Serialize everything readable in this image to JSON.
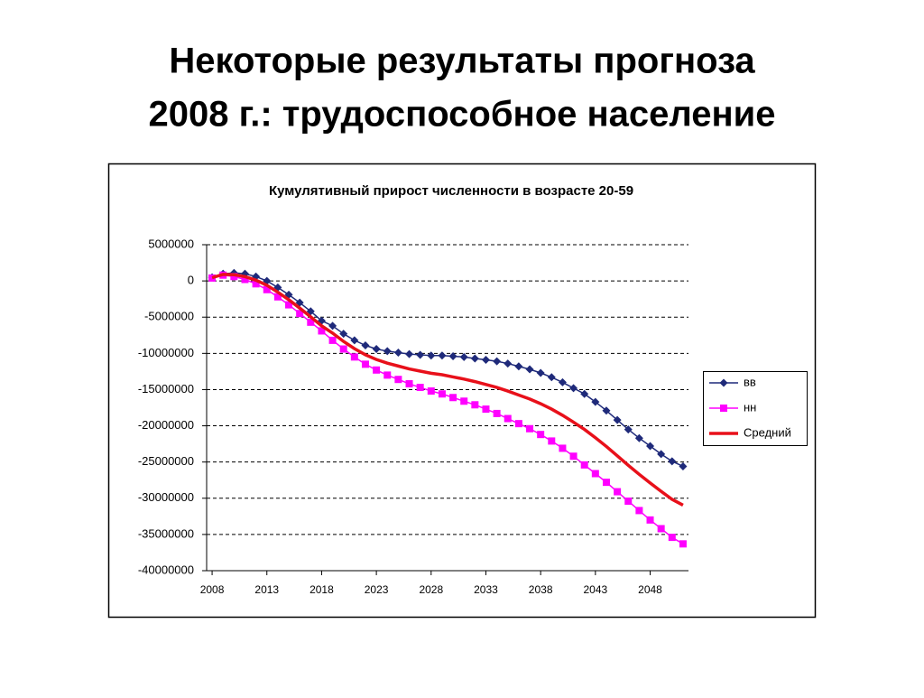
{
  "slide_title": [
    "Некоторые результаты прогноза",
    "2008 г.: трудоспособное население"
  ],
  "chart_data": {
    "type": "line",
    "title": "Кумулятивный прирост численности в возрасте 20-59",
    "x": [
      2008,
      2009,
      2010,
      2011,
      2012,
      2013,
      2014,
      2015,
      2016,
      2017,
      2018,
      2019,
      2020,
      2021,
      2022,
      2023,
      2024,
      2025,
      2026,
      2027,
      2028,
      2029,
      2030,
      2031,
      2032,
      2033,
      2034,
      2035,
      2036,
      2037,
      2038,
      2039,
      2040,
      2041,
      2042,
      2043,
      2044,
      2045,
      2046,
      2047,
      2048,
      2049,
      2050,
      2051
    ],
    "xlim": [
      2007.5,
      2051.5
    ],
    "xticks": [
      2008,
      2013,
      2018,
      2023,
      2028,
      2033,
      2038,
      2043,
      2048
    ],
    "ylim": [
      -40000000,
      5000000
    ],
    "yticks": [
      5000000,
      0,
      -5000000,
      -10000000,
      -15000000,
      -20000000,
      -25000000,
      -30000000,
      -35000000,
      -40000000
    ],
    "grid": true,
    "legend": "right",
    "series": [
      {
        "name": "вв",
        "color": "#1f2a7a",
        "marker": "diamond",
        "values": [
          500000,
          1000000,
          1100000,
          1000000,
          600000,
          0,
          -900000,
          -1900000,
          -3000000,
          -4200000,
          -5500000,
          -6200000,
          -7300000,
          -8200000,
          -8900000,
          -9400000,
          -9700000,
          -9900000,
          -10100000,
          -10200000,
          -10300000,
          -10300000,
          -10400000,
          -10500000,
          -10700000,
          -10900000,
          -11100000,
          -11400000,
          -11800000,
          -12200000,
          -12700000,
          -13300000,
          -14000000,
          -14800000,
          -15600000,
          -16700000,
          -17900000,
          -19200000,
          -20500000,
          -21700000,
          -22800000,
          -23900000,
          -24900000,
          -25600000
        ]
      },
      {
        "name": "нн",
        "color": "#ff00ff",
        "marker": "square",
        "values": [
          400000,
          800000,
          600000,
          200000,
          -400000,
          -1200000,
          -2200000,
          -3300000,
          -4500000,
          -5700000,
          -6900000,
          -8200000,
          -9400000,
          -10500000,
          -11500000,
          -12300000,
          -13000000,
          -13600000,
          -14200000,
          -14700000,
          -15200000,
          -15600000,
          -16100000,
          -16600000,
          -17100000,
          -17700000,
          -18300000,
          -19000000,
          -19700000,
          -20400000,
          -21200000,
          -22100000,
          -23100000,
          -24200000,
          -25400000,
          -26600000,
          -27800000,
          -29100000,
          -30400000,
          -31700000,
          -33000000,
          -34200000,
          -35400000,
          -36300000
        ]
      },
      {
        "name": "Средний",
        "color": "#e8101a",
        "values": [
          450000,
          900000,
          850000,
          600000,
          100000,
          -600000,
          -1550000,
          -2600000,
          -3750000,
          -4950000,
          -6200000,
          -7200000,
          -8350000,
          -9350000,
          -10200000,
          -10850000,
          -11350000,
          -11750000,
          -12150000,
          -12450000,
          -12750000,
          -12950000,
          -13250000,
          -13550000,
          -13900000,
          -14300000,
          -14700000,
          -15200000,
          -15750000,
          -16300000,
          -16950000,
          -17700000,
          -18550000,
          -19500000,
          -20500000,
          -21650000,
          -22850000,
          -24150000,
          -25450000,
          -26700000,
          -27900000,
          -29050000,
          -30150000,
          -30950000
        ]
      }
    ]
  }
}
